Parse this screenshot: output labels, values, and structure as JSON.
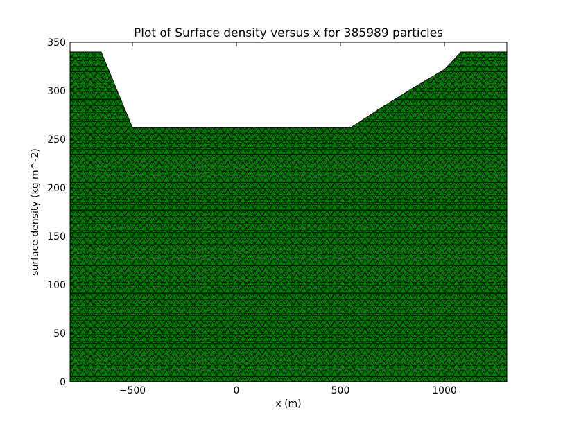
{
  "chart_data": {
    "type": "scatter",
    "title": "Plot of Surface density versus x for 385989 particles",
    "xlabel": "x (m)",
    "ylabel": "surface density (kg m^-2)",
    "xlim": [
      -800,
      1300
    ],
    "ylim": [
      0,
      350
    ],
    "xticks": [
      -500,
      0,
      500,
      1000
    ],
    "xtick_labels": [
      "−500",
      "0",
      "500",
      "1000"
    ],
    "yticks": [
      0,
      50,
      100,
      150,
      200,
      250,
      300,
      350
    ],
    "ytick_labels": [
      "0",
      "50",
      "100",
      "150",
      "200",
      "250",
      "300",
      "350"
    ],
    "grid": false,
    "marker": "triangle-up",
    "marker_color": "#007f00",
    "marker_edge_color": "#000000",
    "series": [
      {
        "upper_envelope": {
          "x": [
            -800,
            -650,
            -500,
            550,
            700,
            850,
            1000,
            1080,
            1300
          ],
          "y": [
            340,
            340,
            262,
            262,
            283,
            303,
            322,
            340,
            340
          ]
        }
      }
    ]
  }
}
